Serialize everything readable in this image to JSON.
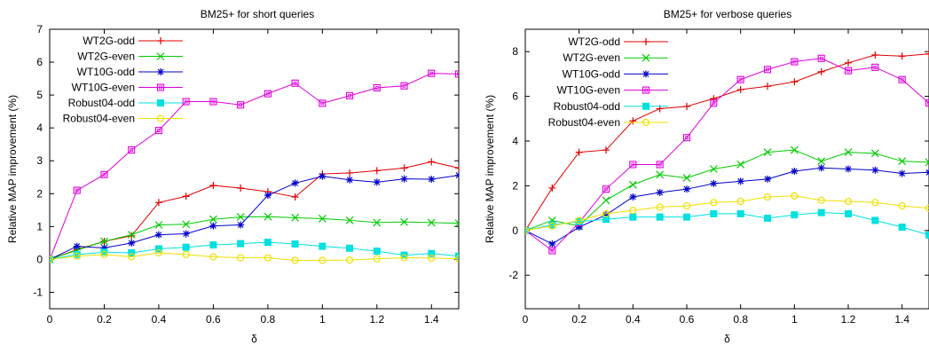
{
  "chart_data": [
    {
      "type": "line",
      "title": "BM25+ for short queries",
      "xlabel": "δ",
      "ylabel": "Relative MAP improvement (%)",
      "xlim": [
        0,
        1.5
      ],
      "ylim": [
        -1.5,
        7
      ],
      "xticks": [
        "0",
        "0.2",
        "0.4",
        "0.6",
        "0.8",
        "1",
        "1.2",
        "1.4"
      ],
      "xtick_values": [
        0,
        0.2,
        0.4,
        0.6,
        0.8,
        1,
        1.2,
        1.4
      ],
      "yticks": [
        "-1",
        "0",
        "1",
        "2",
        "3",
        "4",
        "5",
        "6",
        "7"
      ],
      "ytick_values": [
        -1,
        0,
        1,
        2,
        3,
        4,
        5,
        6,
        7
      ],
      "grid": false,
      "legend_position": "top-left",
      "x": [
        0,
        0.1,
        0.2,
        0.3,
        0.4,
        0.5,
        0.6,
        0.7,
        0.8,
        0.9,
        1.0,
        1.1,
        1.2,
        1.3,
        1.4,
        1.5
      ],
      "series": [
        {
          "name": "WT2G-odd",
          "color": "#e00000",
          "marker": "plus",
          "values": [
            0,
            0.3,
            0.55,
            0.72,
            1.73,
            1.92,
            2.25,
            2.17,
            2.06,
            1.9,
            2.6,
            2.63,
            2.7,
            2.78,
            2.97,
            2.78
          ]
        },
        {
          "name": "WT2G-even",
          "color": "#00cc00",
          "marker": "x",
          "values": [
            0,
            0.28,
            0.55,
            0.75,
            1.05,
            1.07,
            1.22,
            1.29,
            1.3,
            1.27,
            1.24,
            1.19,
            1.12,
            1.14,
            1.12,
            1.1
          ]
        },
        {
          "name": "WT10G-odd",
          "color": "#0000cc",
          "marker": "star",
          "values": [
            0,
            0.4,
            0.35,
            0.5,
            0.75,
            0.78,
            1.02,
            1.05,
            1.95,
            2.32,
            2.53,
            2.42,
            2.35,
            2.45,
            2.44,
            2.56
          ]
        },
        {
          "name": "WT10G-even",
          "color": "#dd00dd",
          "marker": "square",
          "values": [
            0,
            2.1,
            2.58,
            3.33,
            3.92,
            4.8,
            4.8,
            4.7,
            5.04,
            5.36,
            4.75,
            4.98,
            5.22,
            5.28,
            5.66,
            5.64
          ]
        },
        {
          "name": "Robust04-odd",
          "color": "#00e0e0",
          "marker": "filled-square",
          "values": [
            0,
            0.15,
            0.22,
            0.2,
            0.32,
            0.37,
            0.44,
            0.48,
            0.52,
            0.47,
            0.4,
            0.34,
            0.25,
            0.13,
            0.18,
            0.1
          ]
        },
        {
          "name": "Robust04-even",
          "color": "#f0e000",
          "marker": "circle",
          "values": [
            0,
            0.1,
            0.15,
            0.08,
            0.2,
            0.15,
            0.08,
            0.05,
            0.05,
            -0.03,
            -0.03,
            -0.02,
            0.02,
            0.05,
            0.04,
            0.02
          ]
        }
      ]
    },
    {
      "type": "line",
      "title": "BM25+ for verbose queries",
      "xlabel": "δ",
      "ylabel": "Relative MAP improvement (%)",
      "xlim": [
        0,
        1.5
      ],
      "ylim": [
        -3.5,
        9
      ],
      "xticks": [
        "0",
        "0.2",
        "0.4",
        "0.6",
        "0.8",
        "1",
        "1.2",
        "1.4"
      ],
      "xtick_values": [
        0,
        0.2,
        0.4,
        0.6,
        0.8,
        1,
        1.2,
        1.4
      ],
      "yticks": [
        "-2",
        "0",
        "2",
        "4",
        "6",
        "8"
      ],
      "ytick_values": [
        -2,
        0,
        2,
        4,
        6,
        8
      ],
      "grid": false,
      "legend_position": "top-left",
      "x": [
        0,
        0.1,
        0.2,
        0.3,
        0.4,
        0.5,
        0.6,
        0.7,
        0.8,
        0.9,
        1.0,
        1.1,
        1.2,
        1.3,
        1.4,
        1.5
      ],
      "series": [
        {
          "name": "WT2G-odd",
          "color": "#e00000",
          "marker": "plus",
          "values": [
            0,
            1.9,
            3.5,
            3.6,
            4.9,
            5.45,
            5.55,
            5.9,
            6.3,
            6.45,
            6.65,
            7.1,
            7.5,
            7.85,
            7.8,
            7.9
          ]
        },
        {
          "name": "WT2G-even",
          "color": "#00cc00",
          "marker": "x",
          "values": [
            0,
            0.45,
            0.2,
            1.35,
            2.05,
            2.5,
            2.35,
            2.75,
            2.95,
            3.5,
            3.6,
            3.1,
            3.5,
            3.45,
            3.1,
            3.05
          ]
        },
        {
          "name": "WT10G-odd",
          "color": "#0000cc",
          "marker": "star",
          "values": [
            0,
            -0.6,
            0.15,
            0.7,
            1.5,
            1.7,
            1.85,
            2.1,
            2.2,
            2.3,
            2.65,
            2.8,
            2.75,
            2.7,
            2.55,
            2.6
          ]
        },
        {
          "name": "WT10G-even",
          "color": "#dd00dd",
          "marker": "square",
          "values": [
            0,
            -0.9,
            0.35,
            1.85,
            2.95,
            2.95,
            4.15,
            5.7,
            6.75,
            7.2,
            7.55,
            7.7,
            7.15,
            7.3,
            6.75,
            5.7
          ]
        },
        {
          "name": "Robust04-odd",
          "color": "#00e0e0",
          "marker": "filled-square",
          "values": [
            0,
            0.25,
            0.4,
            0.5,
            0.6,
            0.6,
            0.6,
            0.75,
            0.75,
            0.55,
            0.7,
            0.8,
            0.75,
            0.45,
            0.15,
            -0.2
          ]
        },
        {
          "name": "Robust04-even",
          "color": "#f0e000",
          "marker": "circle",
          "values": [
            0,
            0.2,
            0.45,
            0.75,
            0.9,
            1.05,
            1.1,
            1.25,
            1.3,
            1.5,
            1.55,
            1.35,
            1.3,
            1.25,
            1.1,
            1.0
          ]
        }
      ]
    }
  ]
}
